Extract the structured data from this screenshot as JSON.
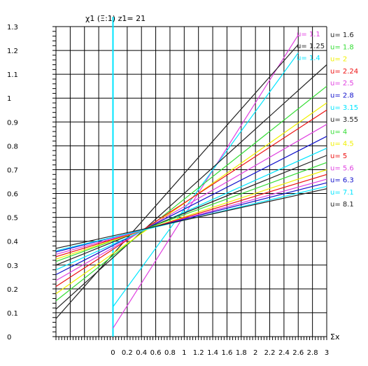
{
  "chart_data": {
    "type": "line",
    "title": "χ1 (Ξ:1) z1= 21",
    "xlabel": "Σx",
    "ylabel": "",
    "xlim": [
      -0.8,
      3.0
    ],
    "ylim": [
      0,
      1.3
    ],
    "x_ticks": [
      "0",
      "0.2",
      "0.4",
      "0.6",
      "0.8",
      "1",
      "1.2",
      "1.4",
      "1.6",
      "1.8",
      "2",
      "2.2",
      "2.4",
      "2.6",
      "2.8",
      "3"
    ],
    "y_ticks": [
      "0",
      "0.1",
      "0.2",
      "0.3",
      "0.4",
      "0.5",
      "0.6",
      "0.7",
      "0.8",
      "0.9",
      "1",
      "1.1",
      "1.2",
      "1.3"
    ],
    "grid": true,
    "legend_position": "right",
    "highlight_line": {
      "x": 0,
      "color": "#00e5ff"
    },
    "series": [
      {
        "name": "u= 1.1",
        "color": "#e040e0",
        "x": [
          0,
          2.6
        ],
        "y": [
          0.035,
          1.265
        ]
      },
      {
        "name": "u= 1.25",
        "color": "#222222",
        "x": [
          -0.8,
          2.6
        ],
        "y": [
          0.075,
          1.225
        ]
      },
      {
        "name": "u= 1.4",
        "color": "#00e5ff",
        "x": [
          0,
          2.6
        ],
        "y": [
          0.125,
          1.19
        ]
      },
      {
        "name": "u= 1.6",
        "color": "#222222",
        "x": [
          -0.8,
          3.0
        ],
        "y": [
          0.115,
          1.14
        ]
      },
      {
        "name": "u= 1.8",
        "color": "#33dd33",
        "x": [
          -0.8,
          3.0
        ],
        "y": [
          0.15,
          1.05
        ]
      },
      {
        "name": "u= 2",
        "color": "#f0f000",
        "x": [
          -0.8,
          3.0
        ],
        "y": [
          0.18,
          0.98
        ]
      },
      {
        "name": "u= 2.24",
        "color": "#ee1111",
        "x": [
          -0.8,
          3.0
        ],
        "y": [
          0.21,
          0.95
        ]
      },
      {
        "name": "u= 2.5",
        "color": "#e040e0",
        "x": [
          -0.8,
          3.0
        ],
        "y": [
          0.235,
          0.89
        ]
      },
      {
        "name": "u= 2.8",
        "color": "#1111cc",
        "x": [
          -0.8,
          3.0
        ],
        "y": [
          0.26,
          0.84
        ]
      },
      {
        "name": "u= 3.15",
        "color": "#00e5ff",
        "x": [
          -0.8,
          3.0
        ],
        "y": [
          0.28,
          0.79
        ]
      },
      {
        "name": "u= 3.55",
        "color": "#222222",
        "x": [
          -0.8,
          3.0
        ],
        "y": [
          0.3,
          0.76
        ]
      },
      {
        "name": "u= 4",
        "color": "#33dd33",
        "x": [
          -0.8,
          3.0
        ],
        "y": [
          0.315,
          0.73
        ]
      },
      {
        "name": "u= 4.5",
        "color": "#f0f000",
        "x": [
          -0.8,
          3.0
        ],
        "y": [
          0.325,
          0.7
        ]
      },
      {
        "name": "u= 5",
        "color": "#ee1111",
        "x": [
          -0.8,
          3.0
        ],
        "y": [
          0.335,
          0.68
        ]
      },
      {
        "name": "u= 5.6",
        "color": "#e040e0",
        "x": [
          -0.8,
          3.0
        ],
        "y": [
          0.345,
          0.66
        ]
      },
      {
        "name": "u= 6.3",
        "color": "#1111cc",
        "x": [
          -0.8,
          3.0
        ],
        "y": [
          0.355,
          0.645
        ]
      },
      {
        "name": "u= 7.1",
        "color": "#00e5ff",
        "x": [
          -0.8,
          3.0
        ],
        "y": [
          0.36,
          0.63
        ]
      },
      {
        "name": "u= 8.1",
        "color": "#222222",
        "x": [
          -0.8,
          3.0
        ],
        "y": [
          0.37,
          0.62
        ]
      }
    ]
  }
}
